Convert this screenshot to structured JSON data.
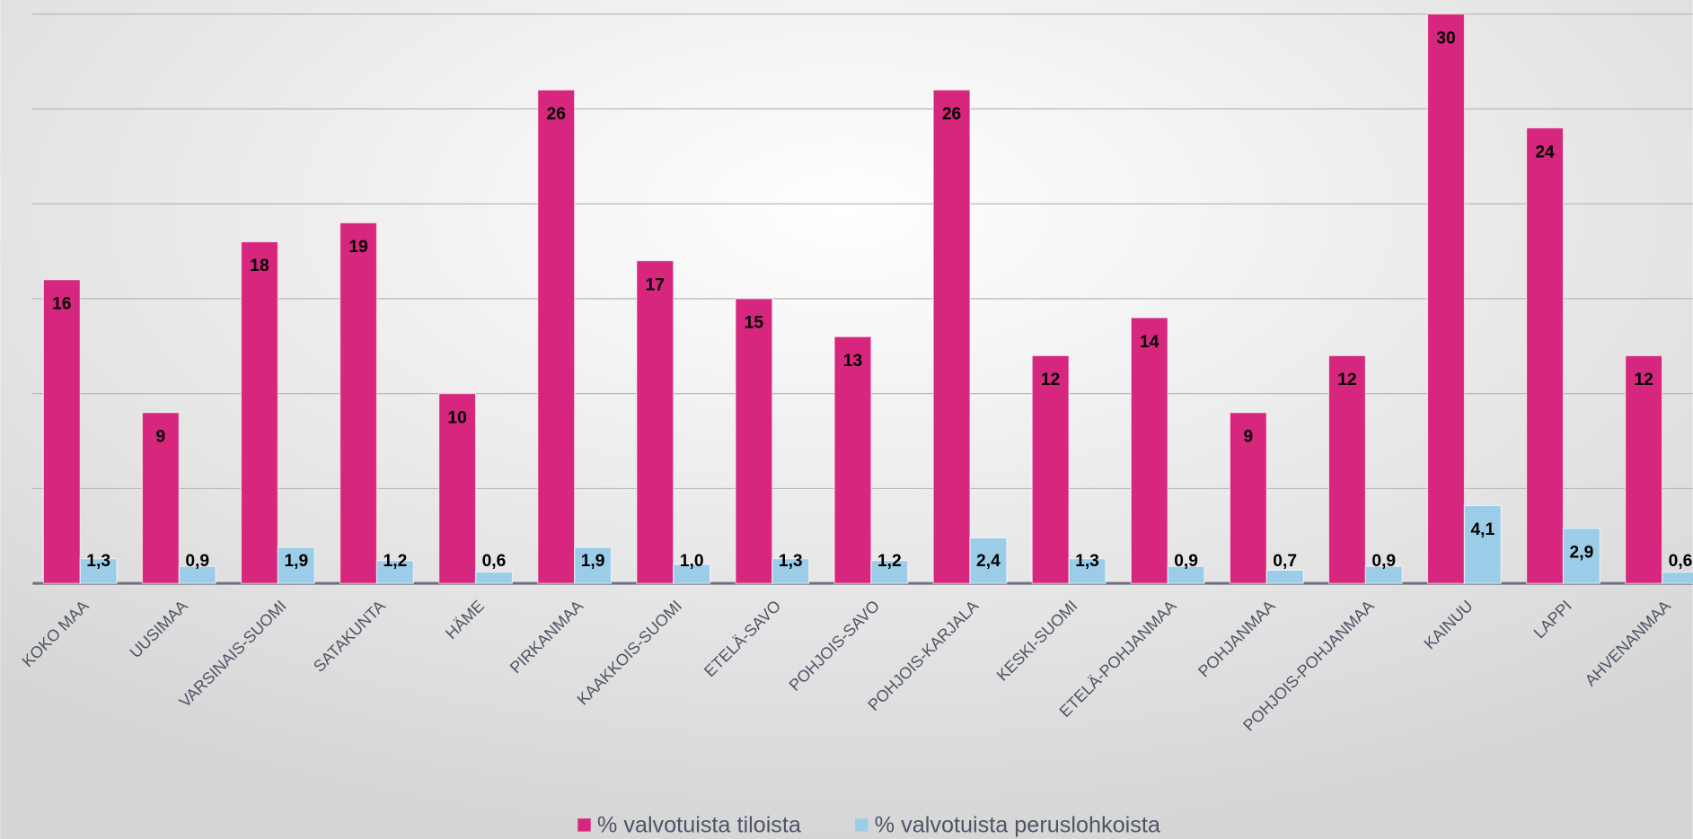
{
  "chart_data": {
    "type": "bar",
    "categories": [
      "KOKO MAA",
      "UUSIMAA",
      "VARSINAIS-SUOMI",
      "SATAKUNTA",
      "HÄME",
      "PIRKANMAA",
      "KAAKKOIS-SUOMI",
      "ETELÄ-SAVO",
      "POHJOIS-SAVO",
      "POHJOIS-KARJALA",
      "KESKI-SUOMI",
      "ETELÄ-POHJANMAA",
      "POHJANMAA",
      "POHJOIS-POHJANMAA",
      "KAINUU",
      "LAPPI",
      "AHVENANMAA"
    ],
    "series": [
      {
        "name": "% valvotuista tiloista",
        "color": "#d6267d",
        "values": [
          16,
          9,
          18,
          19,
          10,
          26,
          17,
          15,
          13,
          26,
          12,
          14,
          9,
          12,
          30,
          24,
          12
        ]
      },
      {
        "name": "% valvotuista peruslohkoista",
        "color": "#9ccde8",
        "values": [
          1.3,
          0.9,
          1.9,
          1.2,
          0.6,
          1.9,
          1.0,
          1.3,
          1.2,
          2.4,
          1.3,
          0.9,
          0.7,
          0.9,
          4.1,
          2.9,
          0.6
        ],
        "value_labels": [
          "1,3",
          "0,9",
          "1,9",
          "1,2",
          "0,6",
          "1,9",
          "1,0",
          "1,3",
          "1,2",
          "2,4",
          "1,3",
          "0,9",
          "0,7",
          "0,9",
          "4,1",
          "2,9",
          "0,6"
        ]
      }
    ],
    "ylim": [
      0,
      30
    ],
    "yticks": [
      0,
      5,
      10,
      15,
      20,
      25,
      30
    ],
    "grid": true,
    "legend": "bottom"
  }
}
